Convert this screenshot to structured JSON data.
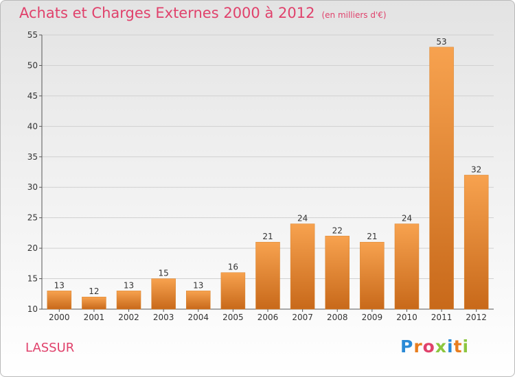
{
  "header": {
    "title": "Achats et Charges Externes 2000 à 2012",
    "unit_note": "(en milliers d'€)"
  },
  "commune": "LASSUR",
  "logo": {
    "text": "Proxiti",
    "letter_colors": [
      "#2a8ad6",
      "#e87d1e",
      "#e0416b",
      "#8cc63f",
      "#2a8ad6",
      "#e87d1e",
      "#8cc63f"
    ]
  },
  "colors": {
    "bar_top": "#f7a24f",
    "bar_bottom": "#c8691a",
    "title": "#e0416b",
    "grid": "#d0d0d0"
  },
  "chart_data": {
    "type": "bar",
    "title": "Achats et Charges Externes 2000 à 2012",
    "subtitle": "(en milliers d'€)",
    "categories": [
      "2000",
      "2001",
      "2002",
      "2003",
      "2004",
      "2005",
      "2006",
      "2007",
      "2008",
      "2009",
      "2010",
      "2011",
      "2012"
    ],
    "values": [
      13,
      12,
      13,
      15,
      13,
      16,
      21,
      24,
      22,
      21,
      24,
      53,
      32
    ],
    "ylim": [
      10,
      55
    ],
    "yticks": [
      10,
      15,
      20,
      25,
      30,
      35,
      40,
      45,
      50,
      55
    ],
    "grid": true,
    "xlabel": "",
    "ylabel": ""
  }
}
